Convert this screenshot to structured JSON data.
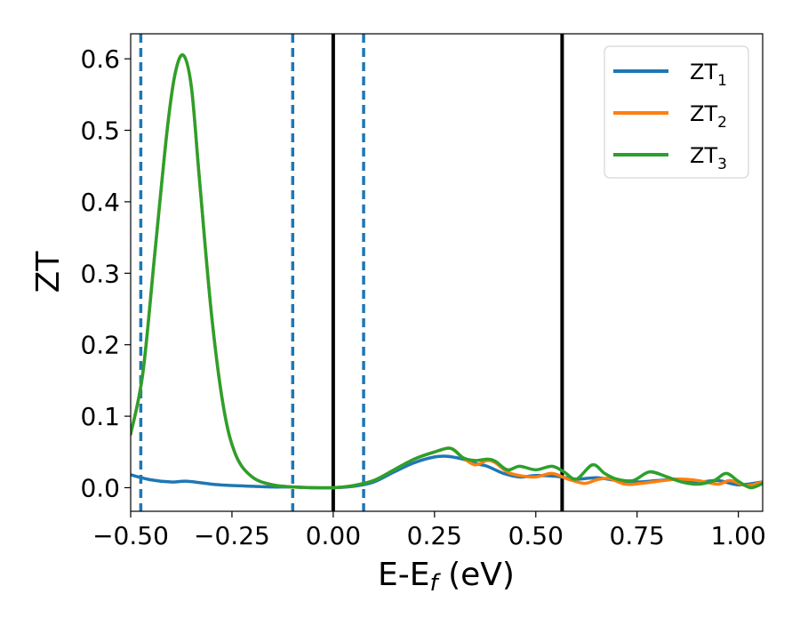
{
  "chart_data": {
    "type": "line",
    "xlabel_main": "E-E",
    "xlabel_sub": "f",
    "xlabel_unit": " (eV)",
    "ylabel": "ZT",
    "xlim": [
      -0.5,
      1.06
    ],
    "ylim": [
      -0.033,
      0.635
    ],
    "xticks": [
      -0.5,
      -0.25,
      0.0,
      0.25,
      0.5,
      0.75,
      1.0
    ],
    "xtick_labels": [
      "−0.50",
      "−0.25",
      "0.00",
      "0.25",
      "0.50",
      "0.75",
      "1.00"
    ],
    "yticks": [
      0.0,
      0.1,
      0.2,
      0.3,
      0.4,
      0.5,
      0.6
    ],
    "ytick_labels": [
      "0.0",
      "0.1",
      "0.2",
      "0.3",
      "0.4",
      "0.5",
      "0.6"
    ],
    "grid": false,
    "legend_position": "top-right",
    "vlines_dashed": {
      "x": [
        -0.475,
        -0.1,
        0.075
      ],
      "color": "#1f77b4"
    },
    "vlines_solid": {
      "x": [
        0.0,
        0.565
      ],
      "color": "#000000"
    },
    "series": [
      {
        "name_main": "ZT",
        "name_sub": "1",
        "color": "#1f77b4",
        "x": [
          -0.5,
          -0.45,
          -0.4,
          -0.36,
          -0.3,
          -0.25,
          -0.2,
          -0.15,
          -0.1,
          -0.05,
          0.0,
          0.05,
          0.1,
          0.15,
          0.2,
          0.25,
          0.28,
          0.32,
          0.35,
          0.38,
          0.42,
          0.46,
          0.5,
          0.55,
          0.6,
          0.65,
          0.7,
          0.75,
          0.8,
          0.85,
          0.9,
          0.95,
          1.0,
          1.06
        ],
        "y": [
          0.018,
          0.011,
          0.008,
          0.009,
          0.005,
          0.003,
          0.002,
          0.001,
          0.001,
          0.0,
          0.0,
          0.002,
          0.008,
          0.022,
          0.035,
          0.043,
          0.044,
          0.04,
          0.034,
          0.03,
          0.02,
          0.015,
          0.017,
          0.016,
          0.012,
          0.014,
          0.01,
          0.008,
          0.01,
          0.012,
          0.008,
          0.01,
          0.004,
          0.008
        ]
      },
      {
        "name_main": "ZT",
        "name_sub": "2",
        "color": "#ff7f0e",
        "x": [
          -0.5,
          -0.47,
          -0.44,
          -0.41,
          -0.39,
          -0.37,
          -0.35,
          -0.33,
          -0.3,
          -0.27,
          -0.24,
          -0.2,
          -0.15,
          -0.1,
          -0.05,
          0.0,
          0.05,
          0.1,
          0.15,
          0.2,
          0.25,
          0.29,
          0.32,
          0.35,
          0.38,
          0.4,
          0.43,
          0.46,
          0.5,
          0.54,
          0.58,
          0.62,
          0.65,
          0.68,
          0.72,
          0.76,
          0.8,
          0.85,
          0.9,
          0.95,
          0.98,
          1.02,
          1.06
        ],
        "y": [
          0.075,
          0.16,
          0.33,
          0.5,
          0.58,
          0.605,
          0.56,
          0.43,
          0.24,
          0.11,
          0.045,
          0.015,
          0.004,
          0.001,
          0.0,
          0.0,
          0.003,
          0.01,
          0.025,
          0.04,
          0.05,
          0.055,
          0.042,
          0.032,
          0.038,
          0.035,
          0.022,
          0.017,
          0.015,
          0.02,
          0.012,
          0.006,
          0.011,
          0.013,
          0.005,
          0.006,
          0.009,
          0.012,
          0.01,
          0.005,
          0.01,
          0.003,
          0.008
        ]
      },
      {
        "name_main": "ZT",
        "name_sub": "3",
        "color": "#2ca02c",
        "x": [
          -0.5,
          -0.47,
          -0.44,
          -0.41,
          -0.39,
          -0.37,
          -0.35,
          -0.33,
          -0.3,
          -0.27,
          -0.24,
          -0.2,
          -0.15,
          -0.1,
          -0.05,
          0.0,
          0.05,
          0.1,
          0.15,
          0.2,
          0.25,
          0.29,
          0.32,
          0.35,
          0.38,
          0.4,
          0.43,
          0.46,
          0.5,
          0.54,
          0.57,
          0.6,
          0.64,
          0.67,
          0.7,
          0.74,
          0.78,
          0.82,
          0.86,
          0.9,
          0.94,
          0.97,
          1.0,
          1.03,
          1.06
        ],
        "y": [
          0.075,
          0.16,
          0.33,
          0.5,
          0.58,
          0.605,
          0.56,
          0.43,
          0.24,
          0.11,
          0.045,
          0.015,
          0.004,
          0.001,
          0.0,
          0.0,
          0.003,
          0.01,
          0.025,
          0.04,
          0.05,
          0.055,
          0.042,
          0.038,
          0.04,
          0.037,
          0.025,
          0.03,
          0.025,
          0.03,
          0.022,
          0.012,
          0.032,
          0.02,
          0.012,
          0.01,
          0.022,
          0.016,
          0.008,
          0.005,
          0.01,
          0.02,
          0.009,
          0.0,
          0.006
        ]
      }
    ]
  }
}
